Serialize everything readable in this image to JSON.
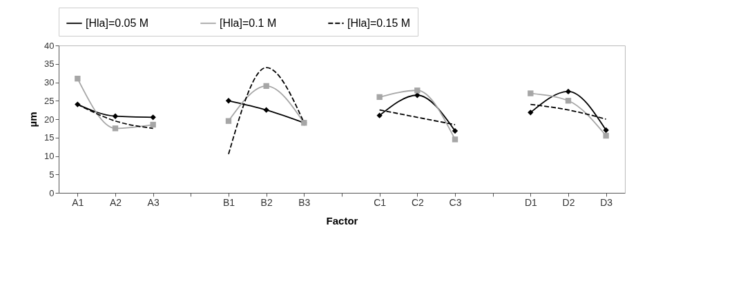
{
  "chart_data": {
    "type": "line",
    "xlabel": "Factor",
    "ylabel": "µm",
    "categories": [
      "A1",
      "A2",
      "A3",
      null,
      "B1",
      "B2",
      "B3",
      null,
      "C1",
      "C2",
      "C3",
      null,
      "D1",
      "D2",
      "D3"
    ],
    "ylim": [
      0,
      40
    ],
    "yticks": [
      0,
      5,
      10,
      15,
      20,
      25,
      30,
      35,
      40
    ],
    "grid": false,
    "legend": "top",
    "series": [
      {
        "name": "[Hla]=0.05 M",
        "color": "#000000",
        "marker": "diamond",
        "line_style": "solid",
        "values": [
          24,
          20.8,
          20.5,
          null,
          25,
          22.5,
          19,
          null,
          21,
          26.5,
          16.8,
          null,
          21.8,
          27.5,
          17
        ]
      },
      {
        "name": "[Hla]=0.1 M",
        "color": "#a6a6a6",
        "marker": "square",
        "line_style": "solid",
        "values": [
          31,
          17.5,
          18.5,
          null,
          19.5,
          29,
          19,
          null,
          26,
          27.8,
          14.5,
          null,
          27,
          25,
          15.5
        ]
      },
      {
        "name": "[Hla]=0.15 M",
        "color": "#000000",
        "marker": "none",
        "line_style": "dashed",
        "values": [
          24,
          19.5,
          17.5,
          null,
          10.5,
          34,
          19,
          null,
          22.5,
          20.5,
          18.5,
          null,
          24,
          22.5,
          20
        ]
      }
    ]
  }
}
